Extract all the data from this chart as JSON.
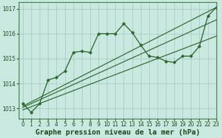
{
  "title": "Graphe pression niveau de la mer (hPa)",
  "background_color": "#c8e8e0",
  "grid_color": "#a0c8c0",
  "line_color": "#2d6a2d",
  "marker_color": "#2d6a2d",
  "xlim": [
    -0.5,
    23
  ],
  "ylim": [
    1012.6,
    1017.25
  ],
  "yticks": [
    1013,
    1014,
    1015,
    1016,
    1017
  ],
  "xticks": [
    0,
    1,
    2,
    3,
    4,
    5,
    6,
    7,
    8,
    9,
    10,
    11,
    12,
    13,
    14,
    15,
    16,
    17,
    18,
    19,
    20,
    21,
    22,
    23
  ],
  "series": [
    {
      "x": [
        0,
        1,
        2,
        3,
        4,
        5,
        6,
        7,
        8,
        9,
        10,
        11,
        12,
        13,
        14,
        15,
        16,
        17,
        18,
        19,
        20,
        21,
        22,
        23
      ],
      "y": [
        1013.2,
        1012.85,
        1013.2,
        1014.15,
        1014.25,
        1014.5,
        1015.25,
        1015.3,
        1015.25,
        1016.0,
        1016.0,
        1016.0,
        1016.4,
        1016.05,
        1015.55,
        1015.1,
        1015.05,
        1014.9,
        1014.85,
        1015.1,
        1015.1,
        1015.5,
        1016.7,
        1017.05
      ],
      "with_markers": true,
      "linewidth": 1.0,
      "markersize": 2.5
    },
    {
      "x": [
        0,
        23
      ],
      "y": [
        1013.1,
        1017.05
      ],
      "with_markers": false,
      "linewidth": 0.9
    },
    {
      "x": [
        0,
        23
      ],
      "y": [
        1013.05,
        1016.55
      ],
      "with_markers": false,
      "linewidth": 0.9
    },
    {
      "x": [
        0,
        23
      ],
      "y": [
        1012.95,
        1015.9
      ],
      "with_markers": false,
      "linewidth": 0.9
    }
  ],
  "title_fontsize": 7.5,
  "tick_fontsize": 5.5,
  "title_color": "#1a4a1a",
  "tick_color": "#1a4a1a",
  "axis_color": "#3a7a3a"
}
